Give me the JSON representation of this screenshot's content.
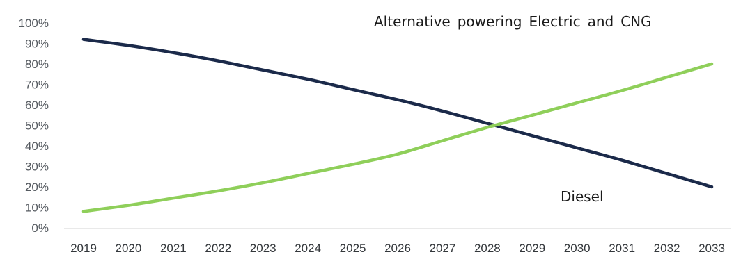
{
  "chart_data": {
    "type": "line",
    "title": "",
    "xlabel": "",
    "ylabel": "",
    "x": [
      "2019",
      "2020",
      "2021",
      "2022",
      "2023",
      "2024",
      "2025",
      "2026",
      "2027",
      "2028",
      "2029",
      "2030",
      "2031",
      "2032",
      "2033"
    ],
    "ylim": [
      0,
      1
    ],
    "yticks": [
      "0%",
      "10%",
      "20%",
      "30%",
      "40%",
      "50%",
      "60%",
      "70%",
      "80%",
      "90%",
      "100%"
    ],
    "grid": false,
    "series": [
      {
        "name": "Diesel",
        "color": "#1b2a4a",
        "values": [
          0.92,
          0.89,
          0.855,
          0.815,
          0.77,
          0.725,
          0.675,
          0.625,
          0.57,
          0.51,
          0.45,
          0.39,
          0.33,
          0.265,
          0.2
        ]
      },
      {
        "name": "Alternative powering: Electric and CNG",
        "color": "#8fcf5a",
        "values": [
          0.08,
          0.11,
          0.145,
          0.18,
          0.22,
          0.265,
          0.31,
          0.36,
          0.425,
          0.49,
          0.55,
          0.61,
          0.67,
          0.735,
          0.8
        ]
      }
    ],
    "annotations": [
      {
        "series": 1,
        "text": "Alternative powering Electric and CNG"
      },
      {
        "series": 0,
        "text": "Diesel"
      }
    ]
  }
}
